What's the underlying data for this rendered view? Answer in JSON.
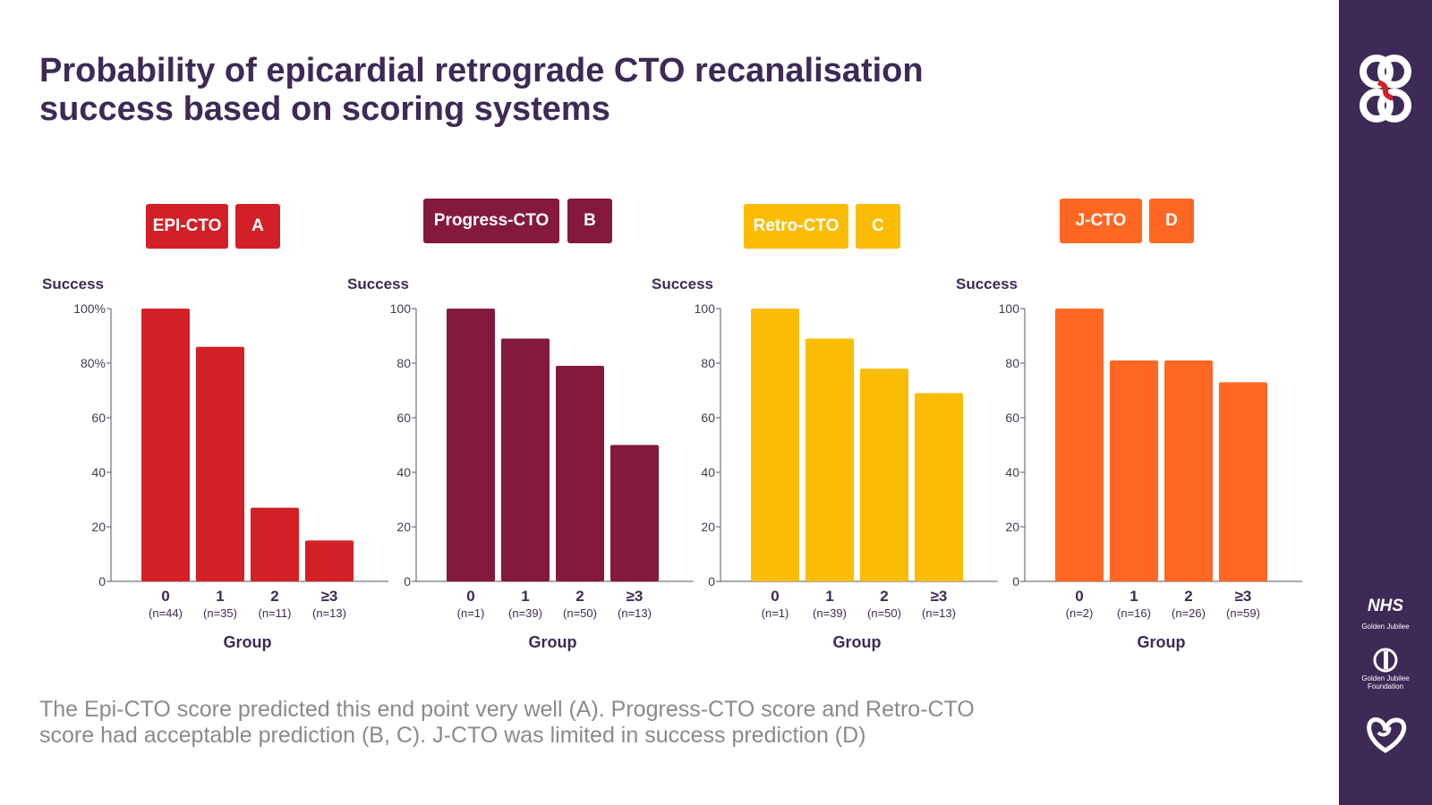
{
  "title_lines": [
    "Probability of epicardial retrograde CTO recanalisation",
    "success based on scoring systems"
  ],
  "footer_lines": [
    "The Epi-CTO score predicted this end point very well (A). Progress-CTO score and Retro-CTO",
    "score had acceptable prediction (B, C). J-CTO was limited in success prediction (D)"
  ],
  "colors": {
    "epi": "#d32026",
    "progress": "#84193c",
    "retro": "#fbbc04",
    "jcto": "#ff6723",
    "brand": "#3d2a56"
  },
  "sidebar": {
    "nhs_text": "NHS",
    "nhs_sub": "Golden Jubilee",
    "foundation_text": "Golden Jubilee Foundation",
    "logo_icon": "interlocking-rings-icon",
    "foundation_icon": "foundation-leaf-icon",
    "heart_icon": "heart-swirl-icon"
  },
  "chart_data": [
    {
      "type": "bar",
      "score_label": "EPI-CTO",
      "panel_letter": "A",
      "color": "#d32026",
      "ylabel": "Success",
      "xlabel": "Group",
      "categories": [
        "0",
        "1",
        "2",
        "≥3"
      ],
      "n_labels": [
        "(n=44)",
        "(n=35)",
        "(n=11)",
        "(n=13)"
      ],
      "values": [
        100,
        86,
        27,
        15
      ],
      "ylim": [
        0,
        100
      ],
      "ytick_labels": [
        "0",
        "20",
        "40",
        "60",
        "80%",
        "100%"
      ]
    },
    {
      "type": "bar",
      "score_label": "Progress-CTO",
      "panel_letter": "B",
      "color": "#84193c",
      "ylabel": "Success",
      "xlabel": "Group",
      "categories": [
        "0",
        "1",
        "2",
        "≥3"
      ],
      "n_labels": [
        "(n=1)",
        "(n=39)",
        "(n=50)",
        "(n=13)"
      ],
      "values": [
        100,
        89,
        79,
        50
      ],
      "ylim": [
        0,
        100
      ],
      "ytick_labels": [
        "0",
        "20",
        "40",
        "60",
        "80",
        "100"
      ]
    },
    {
      "type": "bar",
      "score_label": "Retro-CTO",
      "panel_letter": "C",
      "color": "#fbbc04",
      "ylabel": "Success",
      "xlabel": "Group",
      "categories": [
        "0",
        "1",
        "2",
        "≥3"
      ],
      "n_labels": [
        "(n=1)",
        "(n=39)",
        "(n=50)",
        "(n=13)"
      ],
      "values": [
        100,
        89,
        78,
        69
      ],
      "ylim": [
        0,
        100
      ],
      "ytick_labels": [
        "0",
        "20",
        "40",
        "60",
        "80",
        "100"
      ]
    },
    {
      "type": "bar",
      "score_label": "J-CTO",
      "panel_letter": "D",
      "color": "#ff6723",
      "ylabel": "Success",
      "xlabel": "Group",
      "categories": [
        "0",
        "1",
        "2",
        "≥3"
      ],
      "n_labels": [
        "(n=2)",
        "(n=16)",
        "(n=26)",
        "(n=59)"
      ],
      "values": [
        100,
        81,
        81,
        73
      ],
      "ylim": [
        0,
        100
      ],
      "ytick_labels": [
        "0",
        "20",
        "40",
        "60",
        "80",
        "100"
      ]
    }
  ]
}
